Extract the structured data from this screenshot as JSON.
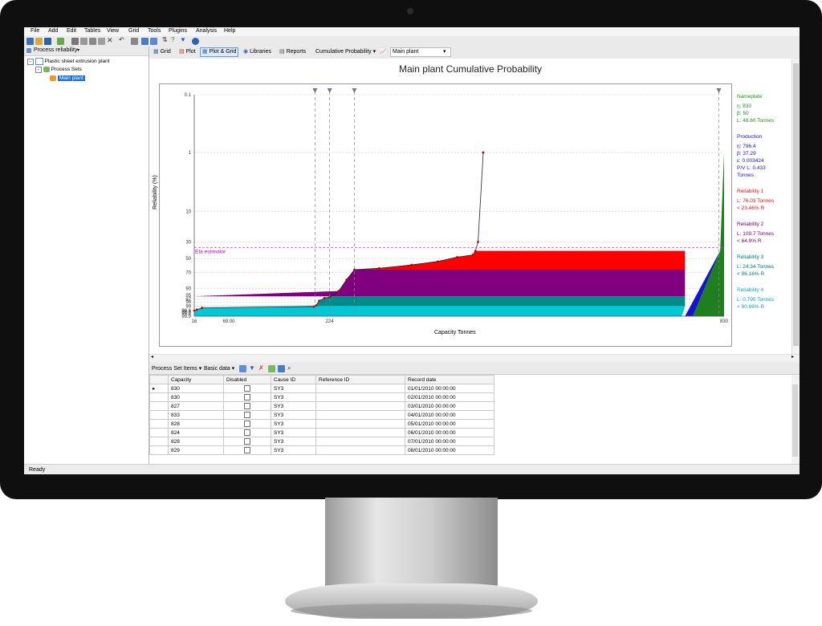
{
  "menu": [
    "File",
    "Add",
    "Edit",
    "Tables",
    "View",
    "Grid",
    "Tools",
    "Plugins",
    "Analysis",
    "Help"
  ],
  "left_panel": {
    "header": "Process reliability",
    "tree": [
      {
        "label": "Plastic sheet extrusion plant",
        "level": 0
      },
      {
        "label": "Process Sets",
        "level": 1
      },
      {
        "label": "Main plant",
        "level": 2,
        "selected": true
      }
    ]
  },
  "view_tabs": [
    {
      "label": "Grid"
    },
    {
      "label": "Plot"
    },
    {
      "label": "Plot & Grid",
      "selected": true
    },
    {
      "label": "Libraries"
    },
    {
      "label": "Reports"
    }
  ],
  "analysis_dropdown": "Cumulative Probability",
  "set_dropdown": "Main plant",
  "chart_data": {
    "type": "area",
    "title": "Main plant Cumulative Probability",
    "xlabel": "Capacity Tonnes",
    "ylabel": "Reliability (%)",
    "x_ticks": [
      "16",
      "69.00",
      "224",
      "830"
    ],
    "y_ticks": [
      "0.1",
      "1",
      "10",
      "30",
      "50",
      "70",
      "90",
      "95",
      "97",
      "98",
      "99",
      "99.6",
      "99.7",
      "99.8",
      "99.9"
    ],
    "eta_label": "Eta estimator",
    "xlim": [
      16,
      830
    ],
    "points": [
      [
        16,
        99.6
      ],
      [
        20,
        99.5
      ],
      [
        28,
        99.3
      ],
      [
        200,
        99.1
      ],
      [
        203,
        98.9
      ],
      [
        208,
        97.6
      ],
      [
        216,
        96.5
      ],
      [
        224,
        96.0
      ],
      [
        238,
        92.0
      ],
      [
        250,
        80.0
      ],
      [
        262,
        66.0
      ],
      [
        300,
        64.0
      ],
      [
        350,
        59.0
      ],
      [
        390,
        54.0
      ],
      [
        420,
        48.0
      ],
      [
        444,
        45.0
      ],
      [
        448,
        40.0
      ],
      [
        452,
        30.0
      ],
      [
        460,
        1.0
      ]
    ],
    "bands": [
      {
        "name": "Reliability 4",
        "y_top": 99.0,
        "color": "#00c8d6"
      },
      {
        "name": "Reliability 3",
        "y_top": 95.6,
        "color": "#008b8b"
      },
      {
        "name": "Reliability 2",
        "y_top": 66.0,
        "color": "#800080"
      },
      {
        "name": "Reliability 1",
        "y_top": 40.0,
        "color": "#ff0000"
      }
    ]
  },
  "legend": [
    {
      "title": "Nameplate",
      "color": "#1f8f1f",
      "lines": [
        "η: 830",
        "β: 50",
        "L: 48.60 Tonnes"
      ]
    },
    {
      "title": "Production",
      "color": "#1414c8",
      "lines": [
        "η: 796.4",
        "β: 37.29",
        "ε: 0.003424",
        "P/V L: 0.433",
        "Tonnes"
      ]
    },
    {
      "title": "Reliability 1",
      "color": "#e01010",
      "lines": [
        "L: 76.03 Tonnes",
        "< 23.46% R"
      ]
    },
    {
      "title": "Reliability 2",
      "color": "#800080",
      "lines": [
        "L: 109.7 Tonnes",
        "< 64.9% R"
      ]
    },
    {
      "title": "Reliability 3",
      "color": "#007a7a",
      "lines": [
        "L: 24.34 Tonnes",
        "< 96.16% R"
      ]
    },
    {
      "title": "Reliability 4",
      "color": "#00a8c0",
      "lines": [
        "L: 0.790 Tonnes",
        "< 90.99% R"
      ]
    }
  ],
  "grid_toolbar": {
    "items_label": "Process Set Items",
    "data_label": "Basic data"
  },
  "grid": {
    "columns": [
      "Capacity",
      "Disabled",
      "Cause ID",
      "Reference ID",
      "Record date"
    ],
    "rows": [
      [
        "830",
        "",
        "SY3",
        "",
        "01/01/2010 00:00:00"
      ],
      [
        "830",
        "",
        "SY3",
        "",
        "02/01/2010 00:00:00"
      ],
      [
        "827",
        "",
        "SY3",
        "",
        "03/01/2010 00:00:00"
      ],
      [
        "833",
        "",
        "SY3",
        "",
        "04/01/2010 00:00:00"
      ],
      [
        "828",
        "",
        "SY3",
        "",
        "05/01/2010 00:00:00"
      ],
      [
        "824",
        "",
        "SY3",
        "",
        "06/01/2010 00:00:00"
      ],
      [
        "828",
        "",
        "SY3",
        "",
        "07/01/2010 00:00:00"
      ],
      [
        "829",
        "",
        "SY3",
        "",
        "08/01/2010 00:00:00"
      ]
    ]
  },
  "status": "Ready"
}
